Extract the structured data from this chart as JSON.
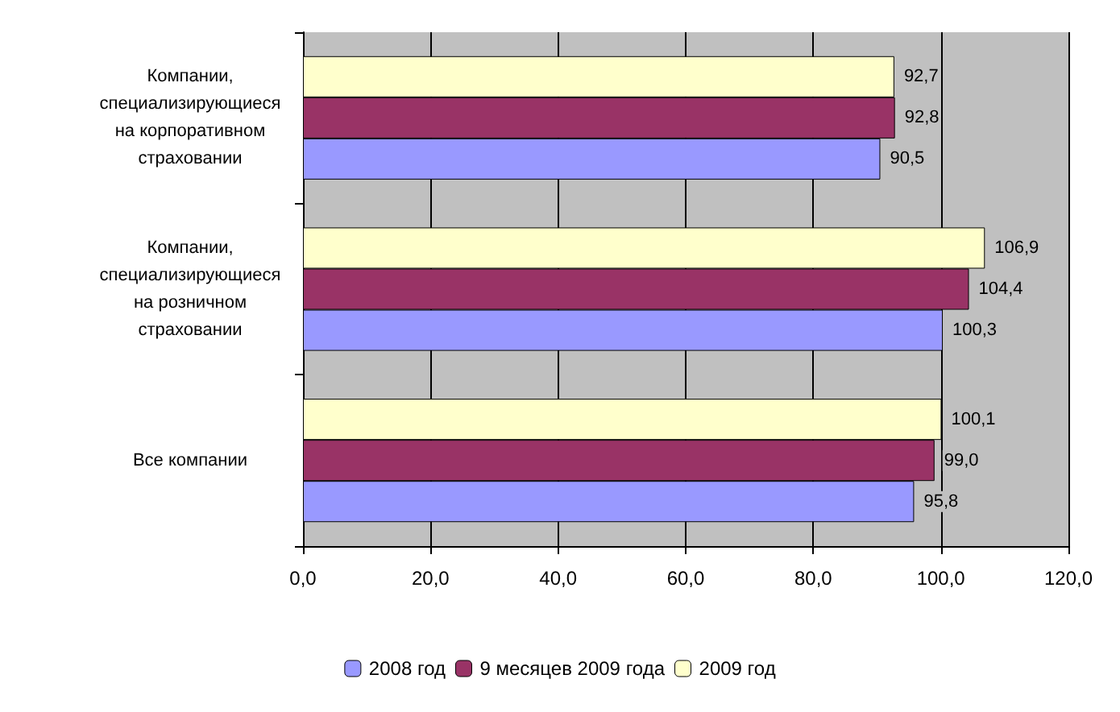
{
  "chart_data": {
    "type": "bar",
    "orientation": "horizontal",
    "categories": [
      "Компании,\nспециализирующиеся\nна корпоративном\nстраховании",
      "Компании,\nспециализирующиеся\nна розничном\nстраховании",
      "Все компании"
    ],
    "series": [
      {
        "name": "2008 год",
        "color": "#9999ff",
        "values": [
          90.5,
          100.3,
          95.8
        ],
        "value_labels": [
          "90,5",
          "100,3",
          "95,8"
        ]
      },
      {
        "name": "9 месяцев 2009 года",
        "color": "#993366",
        "values": [
          92.8,
          104.4,
          99.0
        ],
        "value_labels": [
          "92,8",
          "104,4",
          "99,0"
        ]
      },
      {
        "name": "2009 год",
        "color": "#ffffcc",
        "values": [
          92.7,
          106.9,
          100.1
        ],
        "value_labels": [
          "92,7",
          "106,9",
          "100,1"
        ]
      }
    ],
    "xlim": [
      0,
      120
    ],
    "xticks": [
      {
        "value": 0,
        "label": "0,0"
      },
      {
        "value": 20,
        "label": "20,0"
      },
      {
        "value": 40,
        "label": "40,0"
      },
      {
        "value": 60,
        "label": "60,0"
      },
      {
        "value": 80,
        "label": "80,0"
      },
      {
        "value": 100,
        "label": "100,0"
      },
      {
        "value": 120,
        "label": "120,0"
      }
    ],
    "grid": "x",
    "legend": "bottom"
  }
}
